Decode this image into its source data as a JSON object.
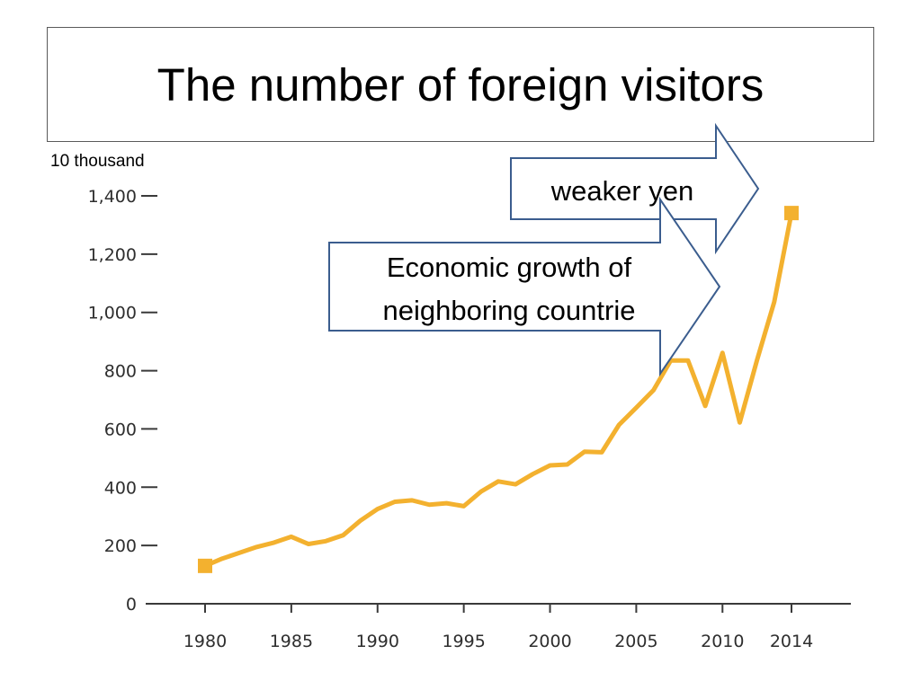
{
  "slide": {
    "title": "The number of foreign visitors",
    "unit_label": "10 thousand"
  },
  "colors": {
    "line": "#f3b12f",
    "axis": "#3a3a3a",
    "callout_border": "#3b5d8e",
    "callout_fill": "#ffffff"
  },
  "callouts": [
    {
      "name": "weaker-yen-callout",
      "lines": [
        "weaker yen"
      ]
    },
    {
      "name": "economic-growth-callout",
      "lines": [
        "Economic growth of",
        "neighboring countrie"
      ]
    }
  ],
  "chart_data": {
    "type": "line",
    "title": "",
    "xlabel": "",
    "ylabel": "",
    "ylim": [
      0,
      1400
    ],
    "yticks": [
      0,
      200,
      400,
      600,
      800,
      1000,
      1200,
      1400
    ],
    "ytick_labels": [
      "0",
      "200",
      "400",
      "600",
      "800",
      "1,000",
      "1,200",
      "1,400"
    ],
    "xlim": [
      1980,
      2014
    ],
    "xticks": [
      1980,
      1985,
      1990,
      1995,
      2000,
      2005,
      2010,
      2014
    ],
    "xtick_labels": [
      "1980",
      "1985",
      "1990",
      "1995",
      "2000",
      "2005",
      "2010",
      "2014"
    ],
    "grid": false,
    "series": [
      {
        "x": [
          1980,
          1981,
          1982,
          1983,
          1984,
          1985,
          1986,
          1987,
          1988,
          1989,
          1990,
          1991,
          1992,
          1993,
          1994,
          1995,
          1996,
          1997,
          1998,
          1999,
          2000,
          2001,
          2002,
          2003,
          2004,
          2005,
          2006,
          2007,
          2008,
          2009,
          2010,
          2011,
          2012,
          2013,
          2014
        ],
        "y": [
          130,
          155,
          175,
          195,
          210,
          230,
          205,
          215,
          235,
          285,
          325,
          350,
          355,
          340,
          345,
          335,
          385,
          420,
          410,
          445,
          475,
          478,
          522,
          520,
          614,
          673,
          733,
          835,
          835,
          679,
          861,
          622,
          836,
          1036,
          1341
        ],
        "endpoint_markers": true
      }
    ]
  }
}
